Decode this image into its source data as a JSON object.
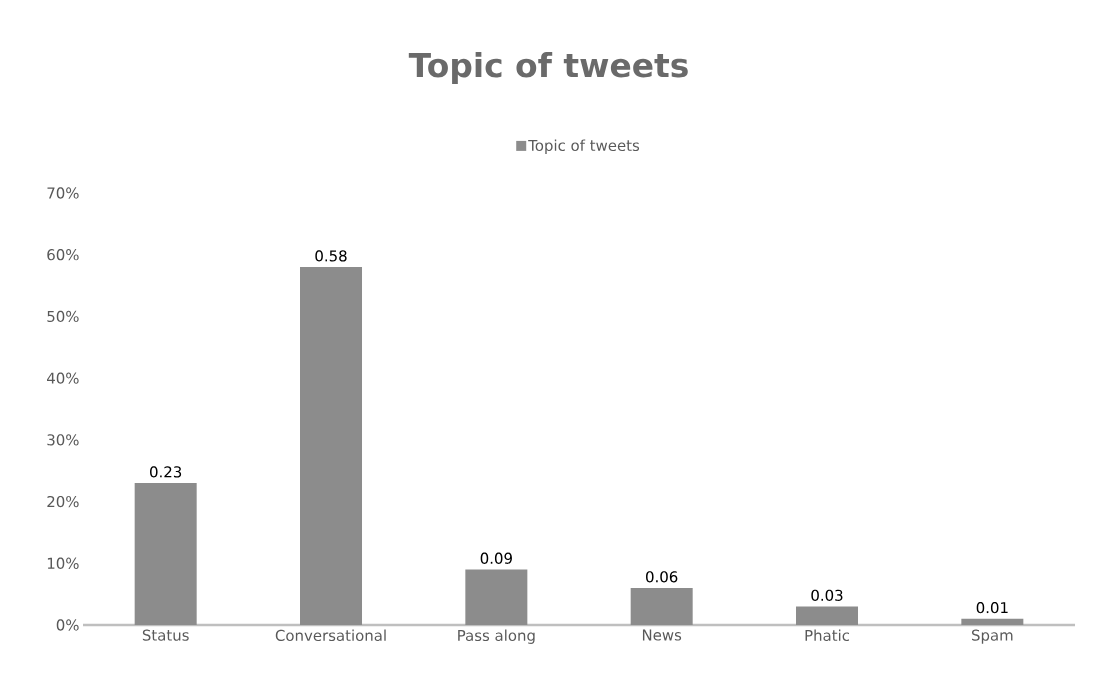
{
  "chart_data": {
    "type": "bar",
    "title": "Topic of tweets",
    "categories": [
      "Status",
      "Conversational",
      "Pass along",
      "News",
      "Phatic",
      "Spam"
    ],
    "series": [
      {
        "name": "Topic of tweets",
        "color": "#8c8c8c",
        "values": [
          0.23,
          0.58,
          0.09,
          0.06,
          0.03,
          0.01
        ]
      }
    ],
    "ylim": [
      0,
      0.7
    ],
    "yticks": [
      {
        "value": 0,
        "label": "0%"
      },
      {
        "value": 0.1,
        "label": "10%"
      },
      {
        "value": 0.2,
        "label": "20%"
      },
      {
        "value": 0.3,
        "label": "30%"
      },
      {
        "value": 0.4,
        "label": "40%"
      },
      {
        "value": 0.5,
        "label": "50%"
      },
      {
        "value": 0.6,
        "label": "60%"
      },
      {
        "value": 0.7,
        "label": "70%"
      }
    ],
    "data_labels": true,
    "legend": "top",
    "grid": false
  }
}
